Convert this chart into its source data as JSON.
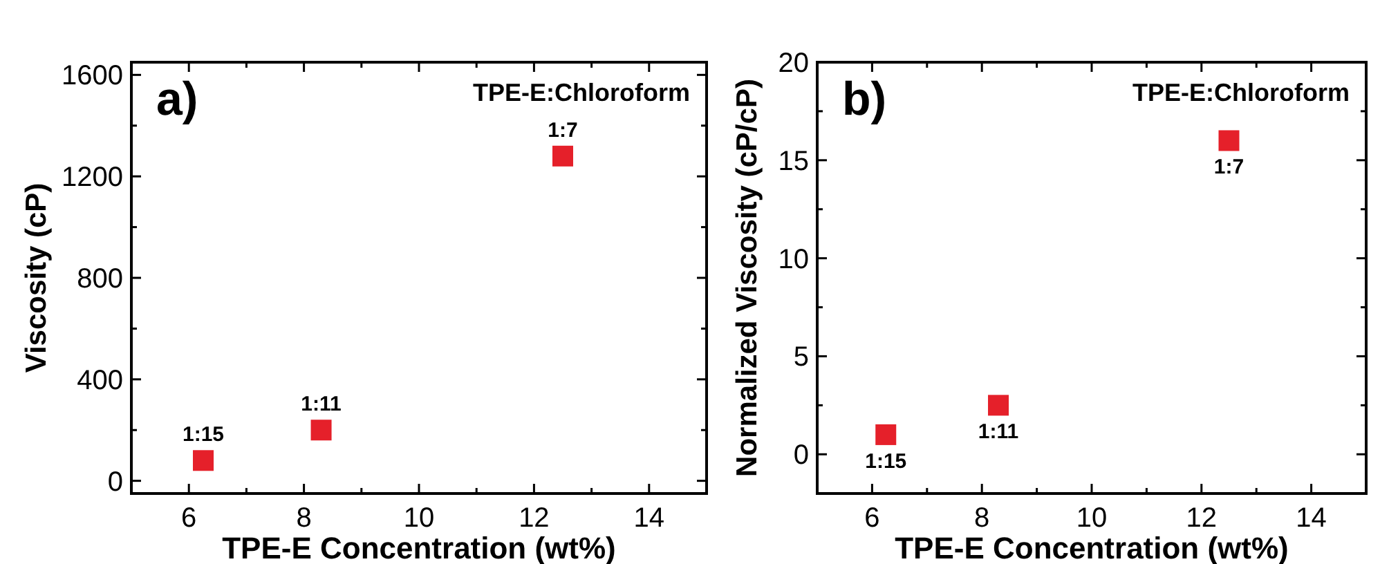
{
  "chart_data": [
    {
      "type": "scatter",
      "xlabel": "TPE-E Concentration (wt%)",
      "ylabel": "Viscosity (cP)",
      "xlim": [
        5,
        15
      ],
      "ylim": [
        -50,
        1650
      ],
      "xticks": [
        6,
        {
          "value": 7,
          "label": null
        },
        8,
        {
          "value": 9,
          "label": null
        },
        10,
        {
          "value": 11,
          "label": null
        },
        12,
        {
          "value": 13,
          "label": null
        },
        14
      ],
      "yticks": [
        0,
        {
          "value": 200,
          "label": null
        },
        400,
        {
          "value": 600,
          "label": null
        },
        800,
        {
          "value": 1000,
          "label": null
        },
        1200,
        {
          "value": 1400,
          "label": null
        },
        1600
      ],
      "marker": "square",
      "x": [
        6.25,
        8.3,
        12.5
      ],
      "series": [
        {
          "color": "#e5202a",
          "values": [
            80,
            200,
            1280
          ]
        }
      ],
      "annotations": [
        "a)",
        "TPE-E:Chloroform",
        {
          "text": "1:15",
          "x": 6.25,
          "y": 80
        },
        {
          "text": "1:11",
          "x": 8.3,
          "y": 200
        },
        {
          "text": "1:7",
          "x": 12.5,
          "y": 1280
        }
      ]
    },
    {
      "type": "scatter",
      "xlabel": "TPE-E Concentration (wt%)",
      "ylabel": "Normalized Viscosity (cP/cP)",
      "xlim": [
        5,
        15
      ],
      "ylim": [
        -2,
        20
      ],
      "xticks": [
        6,
        {
          "value": 7,
          "label": null
        },
        8,
        {
          "value": 9,
          "label": null
        },
        10,
        {
          "value": 11,
          "label": null
        },
        12,
        {
          "value": 13,
          "label": null
        },
        14
      ],
      "yticks": [
        0,
        {
          "value": 2.5,
          "label": null
        },
        5,
        {
          "value": 7.5,
          "label": null
        },
        10,
        {
          "value": 12.5,
          "label": null
        },
        15,
        {
          "value": 17.5,
          "label": null
        },
        20
      ],
      "marker": "square",
      "x": [
        6.25,
        8.3,
        12.5
      ],
      "series": [
        {
          "color": "#e5202a",
          "values": [
            1.0,
            2.5,
            16
          ]
        }
      ],
      "annotations": [
        "b)",
        "TPE-E:Chloroform",
        {
          "text": "1:15",
          "x": 6.25,
          "y": 1.0
        },
        {
          "text": "1:11",
          "x": 8.3,
          "y": 2.5
        },
        {
          "text": "1:7",
          "x": 12.5,
          "y": 16
        }
      ]
    }
  ]
}
